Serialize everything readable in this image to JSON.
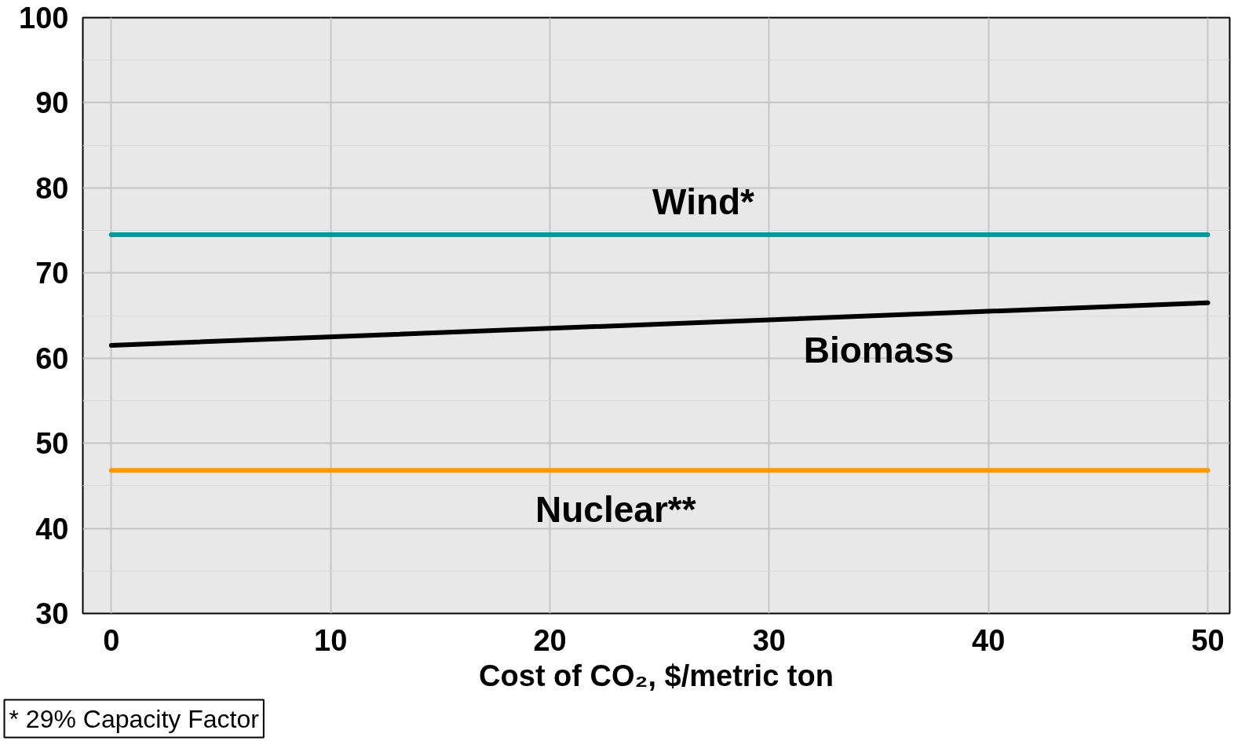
{
  "chart_data": {
    "type": "line",
    "xlabel": "Cost of CO₂, $/metric ton",
    "x": [
      0,
      50
    ],
    "series": [
      {
        "name": "Wind*",
        "color": "#009999",
        "values": [
          74.5,
          74.5
        ]
      },
      {
        "name": "Biomass",
        "color": "#000000",
        "values": [
          61.5,
          66.5
        ]
      },
      {
        "name": "Nuclear**",
        "color": "#ff9900",
        "values": [
          46.8,
          46.8
        ]
      }
    ],
    "xlim": [
      -1.3,
      51
    ],
    "ylim": [
      30,
      100
    ],
    "xticks": [
      0,
      10,
      20,
      30,
      40,
      50
    ],
    "yticks": [
      30,
      40,
      50,
      60,
      70,
      80,
      90,
      100
    ],
    "grid": true,
    "annotations": [
      "* 29% Capacity Factor"
    ]
  }
}
